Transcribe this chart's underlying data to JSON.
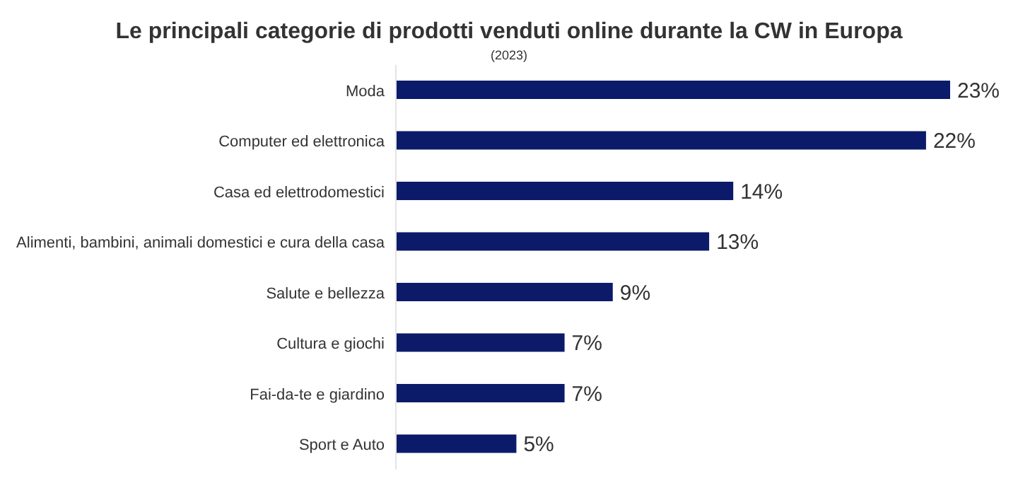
{
  "chart_data": {
    "type": "bar",
    "orientation": "horizontal",
    "title": "Le principali categorie di prodotti venduti online durante la CW in Europa",
    "subtitle": "(2023)",
    "categories": [
      "Moda",
      "Computer ed elettronica",
      "Casa ed elettrodomestici",
      "Alimenti, bambini, animali domestici e cura della casa",
      "Salute e bellezza",
      "Cultura e giochi",
      "Fai-da-te e giardino",
      "Sport e Auto"
    ],
    "values": [
      23,
      22,
      14,
      13,
      9,
      7,
      7,
      5
    ],
    "value_labels": [
      "23%",
      "22%",
      "14%",
      "13%",
      "9%",
      "7%",
      "7%",
      "5%"
    ],
    "color": "#0c1a6a",
    "grid": false,
    "legend": false
  }
}
